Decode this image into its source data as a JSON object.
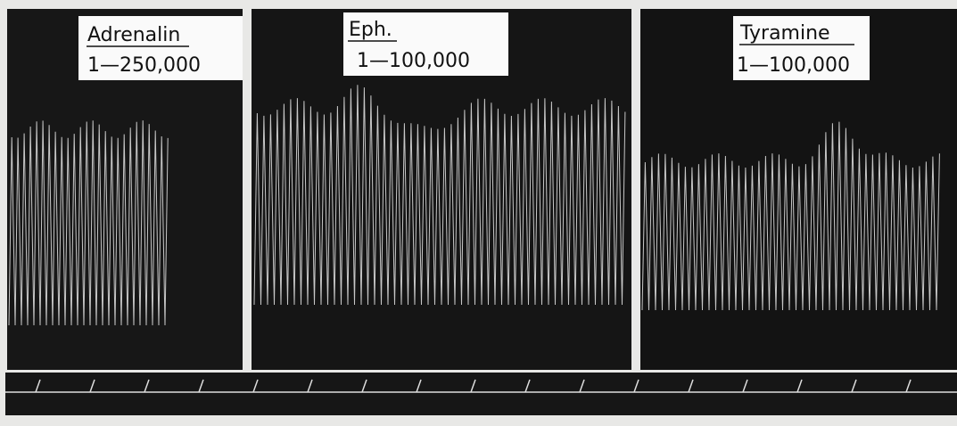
{
  "panels": [
    {
      "drug": "Adrenalin",
      "dilution": "1—250,000"
    },
    {
      "drug": "Eph.",
      "dilution": "1—100,000"
    },
    {
      "drug": "Tyramine",
      "dilution": "1—100,000"
    }
  ]
}
